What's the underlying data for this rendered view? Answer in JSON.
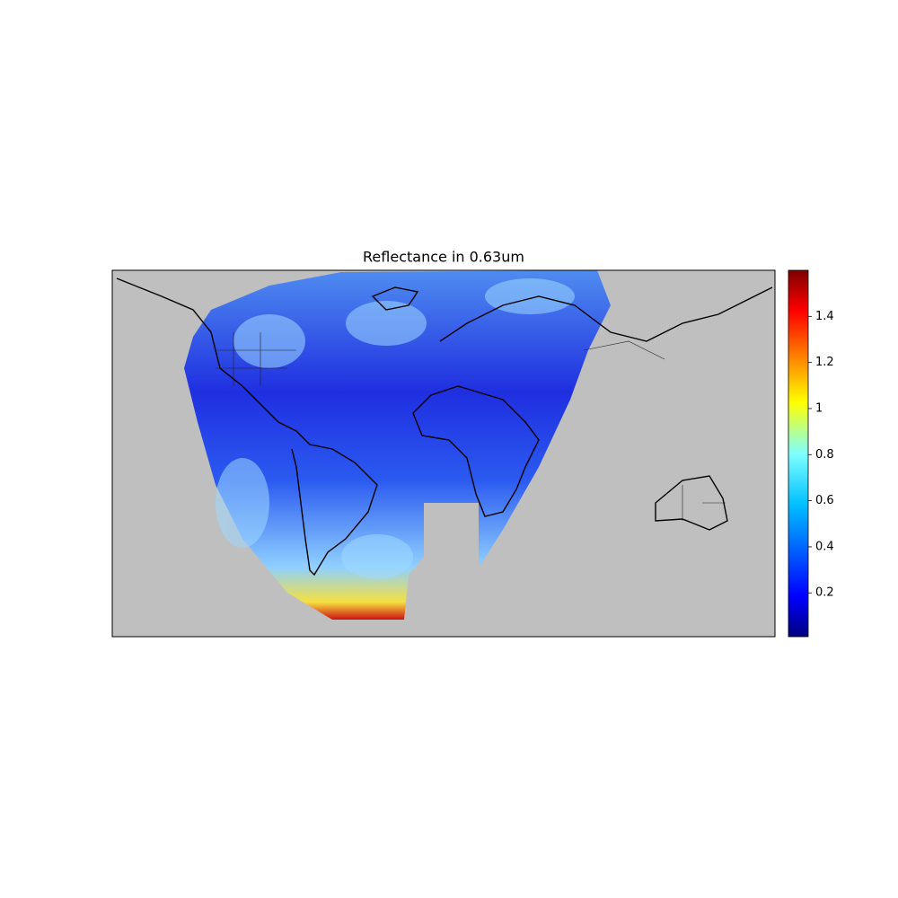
{
  "map": {
    "title": "Reflectance in 0.63um",
    "colorbar": {
      "colormap": "jet",
      "lim": [
        0.01,
        1.6
      ],
      "ticks": [
        0.2,
        0.4,
        0.6,
        0.8,
        1.0,
        1.2,
        1.4
      ]
    }
  }
}
